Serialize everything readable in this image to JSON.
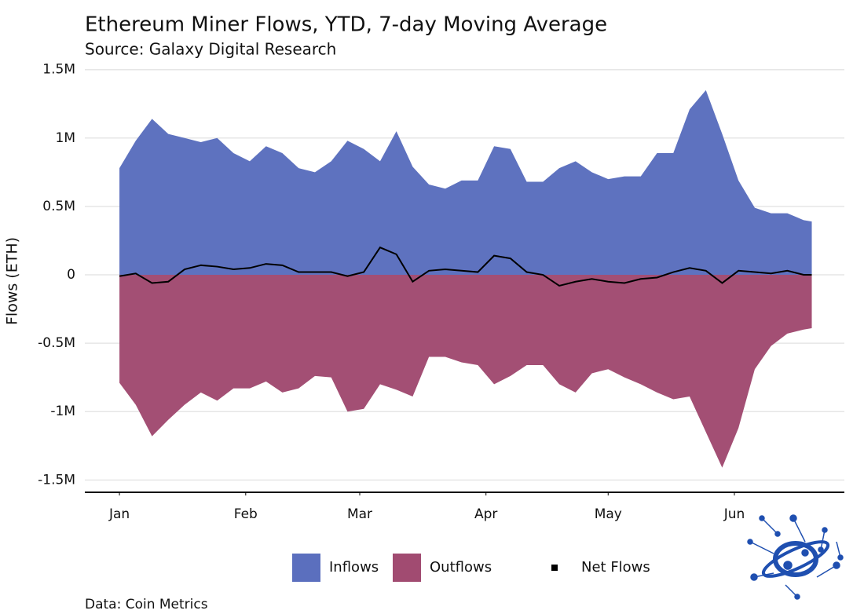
{
  "chart_data": {
    "type": "area",
    "title": "Ethereum Miner Flows, YTD, 7-day Moving Average",
    "subtitle": "Source: Galaxy Digital Research",
    "y_label": "Flows (ETH)",
    "caption": "Data: Coin Metrics",
    "x": [
      0,
      4,
      8,
      12,
      16,
      20,
      24,
      28,
      32,
      36,
      40,
      44,
      48,
      52,
      56,
      60,
      64,
      68,
      72,
      76,
      80,
      84,
      88,
      92,
      96,
      100,
      104,
      108,
      112,
      116,
      120,
      124,
      128,
      132,
      136,
      140,
      144,
      148,
      152,
      156,
      160,
      164,
      168,
      170
    ],
    "xlim": [
      -8.5,
      178
    ],
    "xticks": [
      {
        "value": 0,
        "label": "Jan"
      },
      {
        "value": 31,
        "label": "Feb"
      },
      {
        "value": 59,
        "label": "Mar"
      },
      {
        "value": 90,
        "label": "Apr"
      },
      {
        "value": 120,
        "label": "May"
      },
      {
        "value": 151,
        "label": "Jun"
      }
    ],
    "ylim": [
      -1590000,
      1550000
    ],
    "yticks": [
      {
        "value": -1500000,
        "label": "-1.5M"
      },
      {
        "value": -1000000,
        "label": "-1M"
      },
      {
        "value": -500000,
        "label": "-0.5M"
      },
      0,
      {
        "value": 500000,
        "label": "0.5M"
      },
      {
        "value": 1000000,
        "label": "1M"
      },
      {
        "value": 1500000,
        "label": "1.5M"
      }
    ],
    "grid": true,
    "legend": "bottom",
    "series": [
      {
        "name": "Inflows",
        "type": "area",
        "color": "#5b6fbe",
        "values": [
          780000,
          980000,
          1140000,
          1030000,
          1000000,
          970000,
          1000000,
          890000,
          830000,
          940000,
          890000,
          780000,
          750000,
          830000,
          980000,
          920000,
          830000,
          1050000,
          790000,
          660000,
          630000,
          690000,
          690000,
          940000,
          920000,
          680000,
          680000,
          780000,
          830000,
          750000,
          700000,
          720000,
          720000,
          890000,
          890000,
          1210000,
          1350000,
          1030000,
          690000,
          490000,
          450000,
          450000,
          400000,
          390000
        ]
      },
      {
        "name": "Outflows",
        "type": "area",
        "color": "#a14b71",
        "values": [
          -790000,
          -950000,
          -1180000,
          -1060000,
          -950000,
          -860000,
          -920000,
          -830000,
          -830000,
          -780000,
          -860000,
          -830000,
          -740000,
          -750000,
          -1000000,
          -980000,
          -800000,
          -840000,
          -890000,
          -600000,
          -600000,
          -640000,
          -660000,
          -800000,
          -740000,
          -660000,
          -660000,
          -800000,
          -860000,
          -720000,
          -690000,
          -750000,
          -800000,
          -860000,
          -910000,
          -890000,
          -1150000,
          -1410000,
          -1120000,
          -690000,
          -520000,
          -430000,
          -400000,
          -390000
        ]
      },
      {
        "name": "Net Flows",
        "type": "line",
        "color": "#000000",
        "values": [
          -10000,
          10000,
          -60000,
          -50000,
          40000,
          70000,
          60000,
          40000,
          50000,
          80000,
          70000,
          20000,
          20000,
          20000,
          -10000,
          20000,
          200000,
          150000,
          -50000,
          30000,
          40000,
          30000,
          20000,
          140000,
          120000,
          20000,
          0,
          -80000,
          -50000,
          -30000,
          -50000,
          -60000,
          -30000,
          -20000,
          20000,
          50000,
          30000,
          -60000,
          30000,
          20000,
          10000,
          30000,
          0,
          0
        ]
      }
    ]
  }
}
